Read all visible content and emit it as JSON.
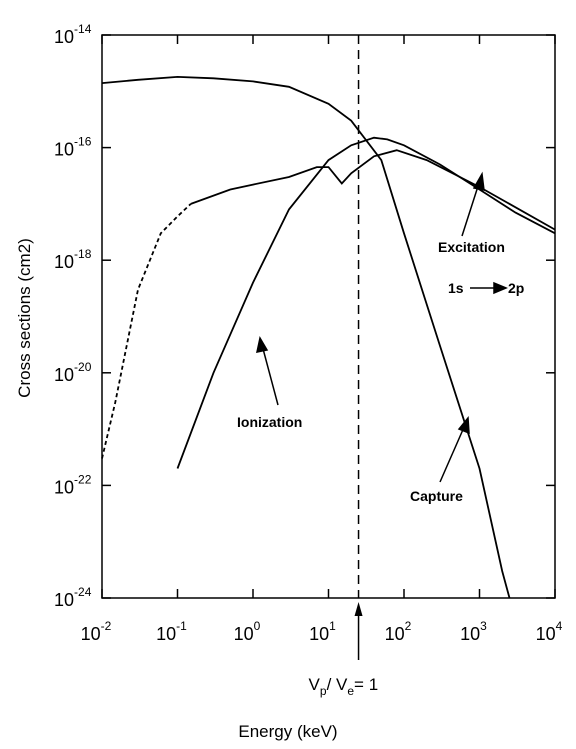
{
  "chart_data": {
    "type": "line",
    "x_label": "Energy (keV)",
    "y_label": "Cross sections (cm2)",
    "xlog": true,
    "ylog": true,
    "xlim": [
      0.01,
      10000
    ],
    "ylim": [
      1e-24,
      1e-14
    ],
    "xticks": [
      {
        "value": 0.01,
        "label": "10",
        "exponent": "-2"
      },
      {
        "value": 0.1,
        "label": "10",
        "exponent": "-1"
      },
      {
        "value": 1,
        "label": "10",
        "exponent": "0"
      },
      {
        "value": 10,
        "label": "10",
        "exponent": "1"
      },
      {
        "value": 100,
        "label": "10",
        "exponent": "2"
      },
      {
        "value": 1000,
        "label": "10",
        "exponent": "3"
      },
      {
        "value": 10000,
        "label": "10",
        "exponent": "4"
      }
    ],
    "yticks": [
      {
        "value": 1e-24,
        "label": "10",
        "exponent": "-24"
      },
      {
        "value": 1e-22,
        "label": "10",
        "exponent": "-22"
      },
      {
        "value": 1e-20,
        "label": "10",
        "exponent": "-20"
      },
      {
        "value": 1e-18,
        "label": "10",
        "exponent": "-18"
      },
      {
        "value": 1e-16,
        "label": "10",
        "exponent": "-16"
      },
      {
        "value": 1e-14,
        "label": "10",
        "exponent": "-14"
      }
    ],
    "series": [
      {
        "color": "#000000",
        "linestyle": "solid",
        "x": [
          0.01,
          0.03,
          0.1,
          0.3,
          1,
          3,
          10,
          20,
          50,
          100,
          300,
          1000,
          2000,
          2500
        ],
        "values": [
          1.4e-15,
          1.6e-15,
          1.8e-15,
          1.7e-15,
          1.5e-15,
          1.2e-15,
          6e-16,
          3e-16,
          6e-17,
          3e-18,
          3e-20,
          2e-22,
          3e-24,
          1e-24
        ]
      },
      {
        "color": "#000000",
        "linestyle": "solid",
        "x": [
          0.1,
          0.3,
          1,
          3,
          10,
          20,
          40,
          60,
          100,
          300,
          1000,
          3000,
          10000
        ],
        "values": [
          2e-22,
          1e-20,
          4e-19,
          8e-18,
          6e-17,
          1.1e-16,
          1.5e-16,
          1.4e-16,
          1.1e-16,
          5e-17,
          1.8e-17,
          7e-18,
          3e-18
        ]
      },
      {
        "color": "#000000",
        "linestyle": "dashed",
        "x": [
          0.01,
          0.015,
          0.03,
          0.06,
          0.1,
          0.15
        ],
        "values": [
          3e-22,
          3e-21,
          3e-19,
          3e-18,
          6e-18,
          1e-17
        ]
      },
      {
        "color": "#000000",
        "linestyle": "solid",
        "x": [
          0.15,
          0.5,
          1,
          3,
          7,
          10,
          15,
          20,
          40,
          80,
          200,
          1000,
          10000
        ],
        "values": [
          1e-17,
          1.8e-17,
          2.2e-17,
          3e-17,
          4.5e-17,
          4.5e-17,
          2.3e-17,
          3.5e-17,
          7e-17,
          9e-17,
          6e-17,
          2e-17,
          3.5e-18
        ]
      }
    ],
    "vline": {
      "x": 25,
      "label": [
        "V",
        "p",
        "/ V",
        "e",
        "= 1"
      ]
    },
    "annotations": [
      "Excitation",
      "1s",
      "2p",
      "Ionization",
      "Capture"
    ]
  }
}
